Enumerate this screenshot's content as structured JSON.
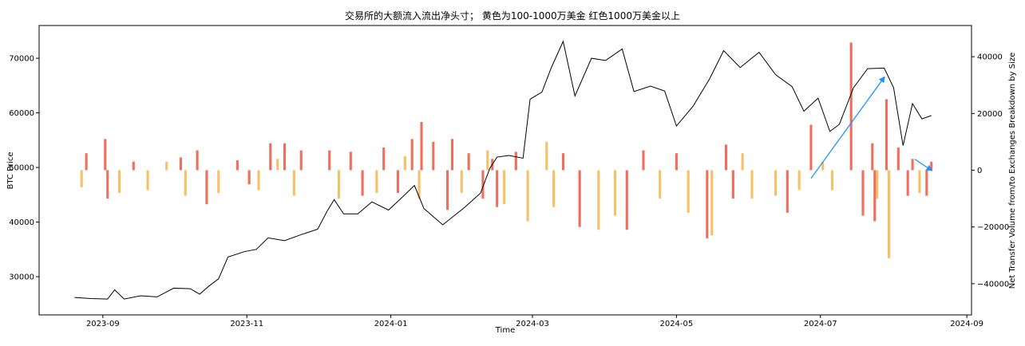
{
  "chart_data": {
    "type": "bar",
    "title": "交易所的大额流入流出净头寸； 黄色为100-1000万美金 红色1000万美金以上",
    "xlabel": "Time",
    "ylabel_left": "BTC Price",
    "ylabel_right": "Net Transfer Volume from/to Exchanges Breakdown by Size",
    "x_range": [
      "2023-08-05",
      "2024-09-03"
    ],
    "ylim_left": [
      23000,
      76000
    ],
    "ylim_right": [
      -51000,
      51000
    ],
    "x_ticks": [
      "2023-09",
      "2023-11",
      "2024-01",
      "2024-03",
      "2024-05",
      "2024-07",
      "2024-09"
    ],
    "y_ticks_left": [
      30000,
      40000,
      50000,
      60000,
      70000
    ],
    "y_ticks_right": [
      -40000,
      -20000,
      0,
      20000,
      40000
    ],
    "colors": {
      "price_line": "#000000",
      "mid_size_bar": "#f7c065",
      "large_size_bar": "#ef6f5c",
      "arrow": "#1e90ff"
    },
    "grid": false,
    "series": [
      {
        "name": "",
        "kind": "line",
        "axis": "left",
        "points": [
          [
            "2023-08-20",
            26200
          ],
          [
            "2023-08-27",
            26000
          ],
          [
            "2023-09-03",
            25900
          ],
          [
            "2023-09-06",
            27600
          ],
          [
            "2023-09-10",
            25900
          ],
          [
            "2023-09-17",
            26500
          ],
          [
            "2023-09-24",
            26300
          ],
          [
            "2023-10-01",
            27900
          ],
          [
            "2023-10-08",
            27800
          ],
          [
            "2023-10-12",
            26800
          ],
          [
            "2023-10-16",
            28300
          ],
          [
            "2023-10-20",
            29600
          ],
          [
            "2023-10-24",
            33600
          ],
          [
            "2023-10-31",
            34600
          ],
          [
            "2023-11-05",
            35000
          ],
          [
            "2023-11-10",
            37100
          ],
          [
            "2023-11-17",
            36600
          ],
          [
            "2023-11-24",
            37700
          ],
          [
            "2023-12-01",
            38700
          ],
          [
            "2023-12-05",
            42000
          ],
          [
            "2023-12-08",
            44100
          ],
          [
            "2023-12-12",
            41500
          ],
          [
            "2023-12-18",
            41500
          ],
          [
            "2023-12-24",
            43700
          ],
          [
            "2023-12-31",
            42200
          ],
          [
            "2024-01-05",
            44200
          ],
          [
            "2024-01-11",
            46700
          ],
          [
            "2024-01-15",
            42500
          ],
          [
            "2024-01-23",
            39500
          ],
          [
            "2024-02-01",
            42600
          ],
          [
            "2024-02-08",
            45300
          ],
          [
            "2024-02-12",
            49900
          ],
          [
            "2024-02-15",
            51900
          ],
          [
            "2024-02-20",
            52200
          ],
          [
            "2024-02-26",
            51700
          ],
          [
            "2024-02-29",
            62500
          ],
          [
            "2024-03-05",
            63800
          ],
          [
            "2024-03-09",
            68300
          ],
          [
            "2024-03-14",
            73100
          ],
          [
            "2024-03-19",
            63100
          ],
          [
            "2024-03-26",
            70000
          ],
          [
            "2024-04-01",
            69600
          ],
          [
            "2024-04-08",
            71700
          ],
          [
            "2024-04-13",
            63900
          ],
          [
            "2024-04-20",
            64900
          ],
          [
            "2024-04-26",
            64000
          ],
          [
            "2024-05-01",
            57600
          ],
          [
            "2024-05-08",
            61200
          ],
          [
            "2024-05-15",
            66200
          ],
          [
            "2024-05-21",
            71400
          ],
          [
            "2024-05-28",
            68300
          ],
          [
            "2024-06-05",
            71100
          ],
          [
            "2024-06-12",
            67000
          ],
          [
            "2024-06-19",
            64800
          ],
          [
            "2024-06-24",
            60300
          ],
          [
            "2024-06-30",
            62700
          ],
          [
            "2024-07-05",
            56600
          ],
          [
            "2024-07-09",
            57900
          ],
          [
            "2024-07-15",
            64600
          ],
          [
            "2024-07-21",
            68100
          ],
          [
            "2024-07-28",
            68200
          ],
          [
            "2024-08-01",
            64600
          ],
          [
            "2024-08-05",
            54000
          ],
          [
            "2024-08-09",
            61700
          ],
          [
            "2024-08-13",
            58900
          ],
          [
            "2024-08-17",
            59500
          ]
        ]
      },
      {
        "name": "",
        "kind": "bar",
        "axis": "right",
        "points": [
          [
            "2023-08-25",
            6000
          ],
          [
            "2023-09-02",
            11000
          ],
          [
            "2023-09-14",
            3000
          ],
          [
            "2023-10-04",
            4500
          ],
          [
            "2023-10-11",
            7000
          ],
          [
            "2023-10-28",
            3500
          ],
          [
            "2023-11-11",
            9500
          ],
          [
            "2023-11-17",
            9500
          ],
          [
            "2023-11-24",
            7000
          ],
          [
            "2023-12-06",
            7000
          ],
          [
            "2023-12-15",
            6500
          ],
          [
            "2023-12-29",
            8000
          ],
          [
            "2024-01-10",
            11000
          ],
          [
            "2024-01-14",
            17000
          ],
          [
            "2024-01-19",
            10000
          ],
          [
            "2024-01-27",
            11000
          ],
          [
            "2024-02-03",
            6000
          ],
          [
            "2024-02-13",
            4000
          ],
          [
            "2024-02-23",
            6500
          ],
          [
            "2024-03-14",
            6000
          ],
          [
            "2024-04-17",
            7000
          ],
          [
            "2024-05-01",
            6000
          ],
          [
            "2024-05-22",
            9000
          ],
          [
            "2024-06-27",
            16000
          ],
          [
            "2024-07-14",
            45000
          ],
          [
            "2024-07-23",
            9500
          ],
          [
            "2024-07-29",
            25000
          ],
          [
            "2024-08-03",
            8000
          ],
          [
            "2024-08-09",
            4000
          ],
          [
            "2024-08-17",
            3000
          ],
          [
            "2023-09-03",
            -10000
          ],
          [
            "2023-10-15",
            -12000
          ],
          [
            "2023-11-02",
            -5000
          ],
          [
            "2023-12-20",
            -9000
          ],
          [
            "2024-01-04",
            -8000
          ],
          [
            "2024-01-25",
            -14000
          ],
          [
            "2024-02-09",
            -10000
          ],
          [
            "2024-02-15",
            -13000
          ],
          [
            "2024-03-21",
            -20000
          ],
          [
            "2024-04-10",
            -21000
          ],
          [
            "2024-05-14",
            -24000
          ],
          [
            "2024-05-25",
            -10000
          ],
          [
            "2024-06-17",
            -15000
          ],
          [
            "2024-07-19",
            -16000
          ],
          [
            "2024-07-24",
            -18000
          ],
          [
            "2024-07-30",
            -29000
          ],
          [
            "2024-08-07",
            -9000
          ],
          [
            "2024-08-15",
            -9000
          ]
        ]
      },
      {
        "name": "",
        "kind": "bar",
        "axis": "right",
        "points": [
          [
            "2023-08-23",
            -6000
          ],
          [
            "2023-09-08",
            -8000
          ],
          [
            "2023-09-20",
            -7000
          ],
          [
            "2023-10-06",
            -9000
          ],
          [
            "2023-10-20",
            -8000
          ],
          [
            "2023-11-06",
            -7000
          ],
          [
            "2023-11-21",
            -9000
          ],
          [
            "2023-12-10",
            -10000
          ],
          [
            "2023-12-26",
            -8000
          ],
          [
            "2024-01-13",
            -10000
          ],
          [
            "2024-01-31",
            -8000
          ],
          [
            "2024-02-18",
            -12000
          ],
          [
            "2024-02-28",
            -18000
          ],
          [
            "2024-03-10",
            -13000
          ],
          [
            "2024-03-29",
            -21000
          ],
          [
            "2024-04-05",
            -16000
          ],
          [
            "2024-04-24",
            -10000
          ],
          [
            "2024-05-06",
            -15000
          ],
          [
            "2024-05-16",
            -23000
          ],
          [
            "2024-06-02",
            -10000
          ],
          [
            "2024-06-12",
            -9000
          ],
          [
            "2024-06-22",
            -7000
          ],
          [
            "2024-07-06",
            -7000
          ],
          [
            "2024-07-25",
            -10000
          ],
          [
            "2024-07-30",
            -31000
          ],
          [
            "2024-08-12",
            -8000
          ],
          [
            "2023-09-28",
            3000
          ],
          [
            "2023-11-14",
            4000
          ],
          [
            "2024-01-07",
            5000
          ],
          [
            "2024-02-11",
            7000
          ],
          [
            "2024-03-07",
            10000
          ],
          [
            "2024-05-29",
            6000
          ],
          [
            "2024-07-02",
            3000
          ]
        ]
      }
    ]
  }
}
